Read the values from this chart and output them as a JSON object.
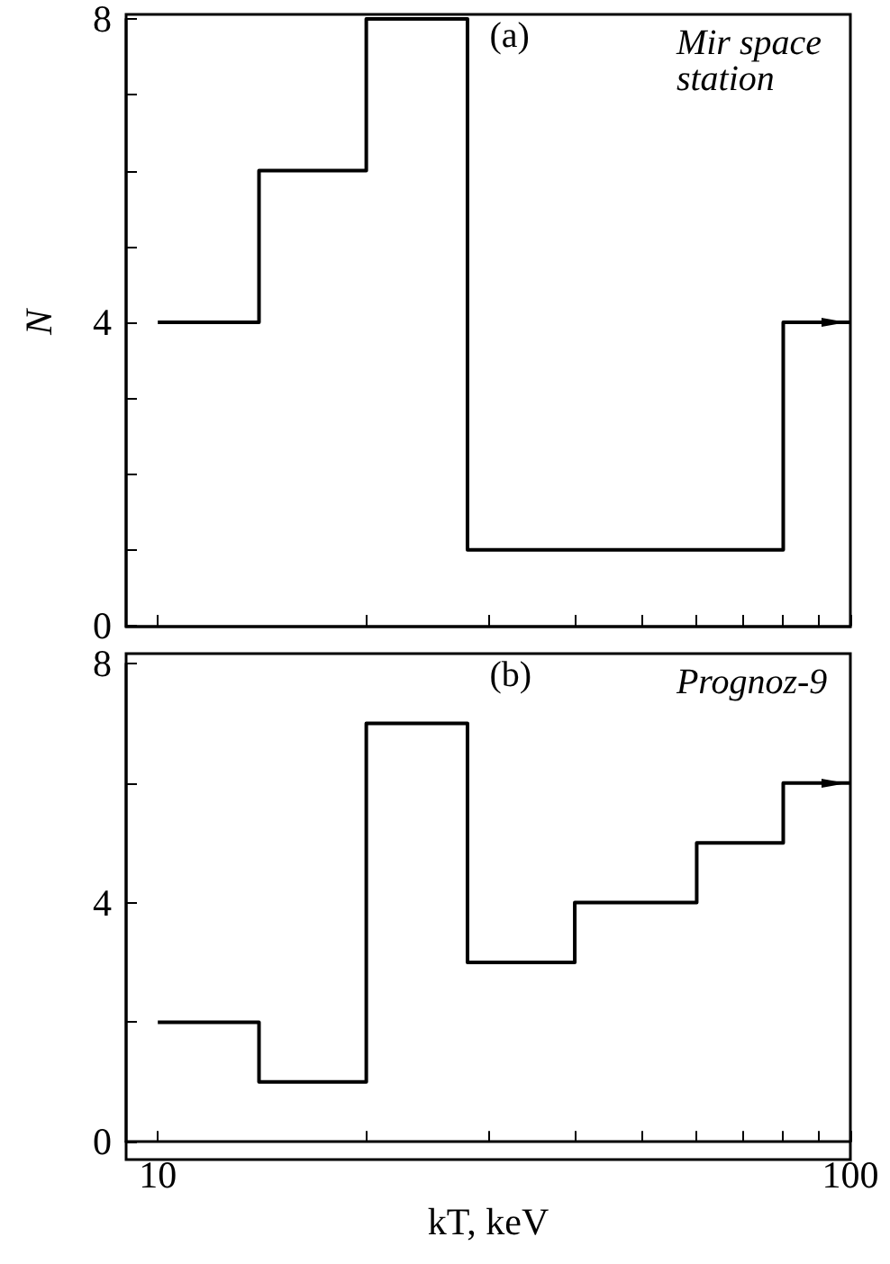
{
  "chart_data": [
    {
      "type": "histogram",
      "bins": [
        10,
        14,
        20,
        28,
        80,
        100
      ],
      "values": [
        4,
        6,
        8,
        1,
        4
      ],
      "color": "#000000",
      "ylabel": "N",
      "xlim": [
        9,
        100
      ],
      "ylim": [
        0,
        8
      ],
      "log": "x",
      "xticks": [
        {
          "value": 10,
          "label": null
        },
        {
          "value": 20,
          "label": null
        },
        {
          "value": 30,
          "label": null
        },
        {
          "value": 40,
          "label": null
        },
        {
          "value": 50,
          "label": null
        },
        {
          "value": 60,
          "label": null
        },
        {
          "value": 70,
          "label": null
        },
        {
          "value": 80,
          "label": null
        },
        {
          "value": 90,
          "label": null
        },
        {
          "value": 100,
          "label": null
        }
      ],
      "yticks": [
        0,
        {
          "value": 1,
          "label": null
        },
        {
          "value": 2,
          "label": null
        },
        {
          "value": 3,
          "label": null
        },
        4,
        {
          "value": 5,
          "label": null
        },
        {
          "value": 6,
          "label": null
        },
        {
          "value": 7,
          "label": null
        },
        8
      ],
      "tick_labels": "y",
      "grid": false,
      "annotations": [
        "(a)",
        "Mir space station"
      ]
    },
    {
      "type": "histogram",
      "bins": [
        10,
        14,
        20,
        28,
        40,
        60,
        80,
        100
      ],
      "values": [
        2,
        1,
        7,
        3,
        4,
        5,
        6
      ],
      "color": "#000000",
      "xlabel": "kT, keV",
      "xlim": [
        9,
        100
      ],
      "ylim": [
        0,
        8
      ],
      "log": "x",
      "xticks": [
        10,
        {
          "value": 20,
          "label": null
        },
        {
          "value": 30,
          "label": null
        },
        {
          "value": 40,
          "label": null
        },
        {
          "value": 50,
          "label": null
        },
        {
          "value": 60,
          "label": null
        },
        {
          "value": 70,
          "label": null
        },
        {
          "value": 80,
          "label": null
        },
        {
          "value": 90,
          "label": null
        },
        100
      ],
      "yticks": [
        0,
        {
          "value": 2,
          "label": null
        },
        4,
        {
          "value": 6,
          "label": null
        },
        8
      ],
      "grid": false,
      "annotations": [
        "(b)",
        "Prognoz-9"
      ]
    }
  ]
}
